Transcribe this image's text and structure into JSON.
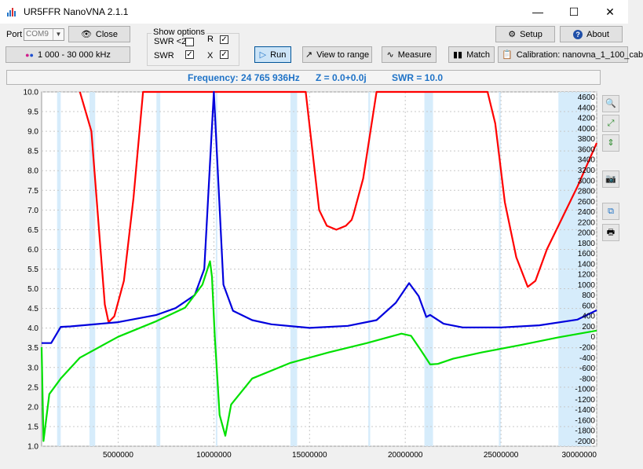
{
  "window": {
    "title": "UR5FFR NanoVNA 2.1.1"
  },
  "port": {
    "label": "Port",
    "value": "COM9"
  },
  "buttons": {
    "close": "Close",
    "range": "1 000 - 30 000 kHz",
    "run": "Run",
    "view_to_range": "View to range",
    "measure": "Measure",
    "match": "Match",
    "setup": "Setup",
    "about": "About",
    "calibration": "Calibration: nanovna_1_100_cab"
  },
  "show_options": {
    "title": "Show options",
    "swr_lt2": {
      "label": "SWR <2",
      "checked": false
    },
    "r": {
      "label": "R",
      "checked": true
    },
    "swr": {
      "label": "SWR",
      "checked": true
    },
    "x": {
      "label": "X",
      "checked": true
    }
  },
  "status": {
    "frequency": "Frequency: 24 765 936Hz",
    "impedance": "Z = 0.0+0.0j",
    "swr": "SWR = 10.0"
  },
  "colors": {
    "swr": "#ff0000",
    "r": "#0000dd",
    "x": "#00e000",
    "band": "#d6ecfb"
  },
  "chart_data": {
    "type": "line",
    "x_range": [
      1000000,
      30000000
    ],
    "x_ticks": [
      5000000,
      10000000,
      15000000,
      20000000,
      25000000,
      30000000
    ],
    "x_tick_labels": [
      "5000000",
      "10000000",
      "15000000",
      "20000000",
      "25000000",
      "30000000"
    ],
    "y_left_range": [
      1.0,
      10.0
    ],
    "y_left_ticks": [
      "1.0",
      "1.5",
      "2.0",
      "2.5",
      "3.0",
      "3.5",
      "4.0",
      "4.5",
      "5.0",
      "5.5",
      "6.0",
      "6.5",
      "7.0",
      "7.5",
      "8.0",
      "8.5",
      "9.0",
      "9.5",
      "10.0"
    ],
    "y_right_range": [
      -2100,
      4700
    ],
    "y_right_ticks": [
      "-2000",
      "-1800",
      "-1600",
      "-1400",
      "-1200",
      "-1000",
      "-800",
      "-600",
      "-400",
      "-200",
      "0",
      "200",
      "400",
      "600",
      "800",
      "1000",
      "1200",
      "1400",
      "1600",
      "1800",
      "2000",
      "2200",
      "2400",
      "2600",
      "2800",
      "3000",
      "3200",
      "3400",
      "3600",
      "3800",
      "4000",
      "4200",
      "4400",
      "4600"
    ],
    "grid": true,
    "bands": [
      [
        1810000,
        2000000
      ],
      [
        3500000,
        3800000
      ],
      [
        7000000,
        7200000
      ],
      [
        10100000,
        10150000
      ],
      [
        14000000,
        14350000
      ],
      [
        18068000,
        18168000
      ],
      [
        21000000,
        21450000
      ],
      [
        24890000,
        24990000
      ],
      [
        28000000,
        29700000
      ]
    ],
    "series": [
      {
        "key": "swr",
        "axis": "left",
        "x": [
          3000000,
          3600000,
          4000000,
          4300000,
          4500000,
          4800000,
          5300000,
          5800000,
          6300000,
          8000000,
          12000000,
          13000000,
          14800000,
          15500000,
          15900000,
          16400000,
          16900000,
          17200000,
          17300000,
          17800000,
          18500000,
          18800000,
          24300000,
          24700000,
          25200000,
          25800000,
          26400000,
          26800000,
          27400000,
          28200000,
          29000000,
          30000000
        ],
        "y": [
          10,
          9,
          6.5,
          4.6,
          4.15,
          4.3,
          5.2,
          7.3,
          10,
          10,
          10,
          10,
          10,
          7.0,
          6.6,
          6.5,
          6.6,
          6.75,
          6.9,
          7.8,
          10,
          10,
          10,
          9.2,
          7.2,
          5.8,
          5.05,
          5.2,
          6.0,
          6.8,
          7.6,
          8.7
        ]
      },
      {
        "key": "r",
        "axis": "right",
        "x": [
          1000000,
          1500000,
          2000000,
          2500000,
          5000000,
          7000000,
          8000000,
          9000000,
          9500000,
          10000000,
          10500000,
          11000000,
          12000000,
          13000000,
          15000000,
          17000000,
          18500000,
          19500000,
          20200000,
          20700000,
          21100000,
          21300000,
          22000000,
          23000000,
          25000000,
          27000000,
          29000000,
          30000000
        ],
        "y": [
          -120,
          -120,
          190,
          200,
          280,
          420,
          550,
          800,
          1300,
          4700,
          1000,
          500,
          320,
          240,
          170,
          210,
          320,
          650,
          1030,
          780,
          380,
          420,
          250,
          180,
          180,
          220,
          330,
          510
        ]
      },
      {
        "key": "x",
        "axis": "right",
        "x": [
          1000000,
          1100000,
          1400000,
          2000000,
          3000000,
          5000000,
          7000000,
          8500000,
          9400000,
          9800000,
          9900000,
          10050000,
          10300000,
          10600000,
          10900000,
          12000000,
          14000000,
          16000000,
          18000000,
          19200000,
          19800000,
          20300000,
          20800000,
          21300000,
          21700000,
          22500000,
          24000000,
          26000000,
          28000000,
          30000000
        ],
        "y": [
          -200,
          -2000,
          -1100,
          -800,
          -400,
          0,
          300,
          560,
          1000,
          1450,
          1150,
          0,
          -1500,
          -1900,
          -1300,
          -800,
          -500,
          -300,
          -120,
          0,
          60,
          20,
          -250,
          -530,
          -520,
          -420,
          -300,
          -160,
          -10,
          120
        ]
      }
    ]
  }
}
